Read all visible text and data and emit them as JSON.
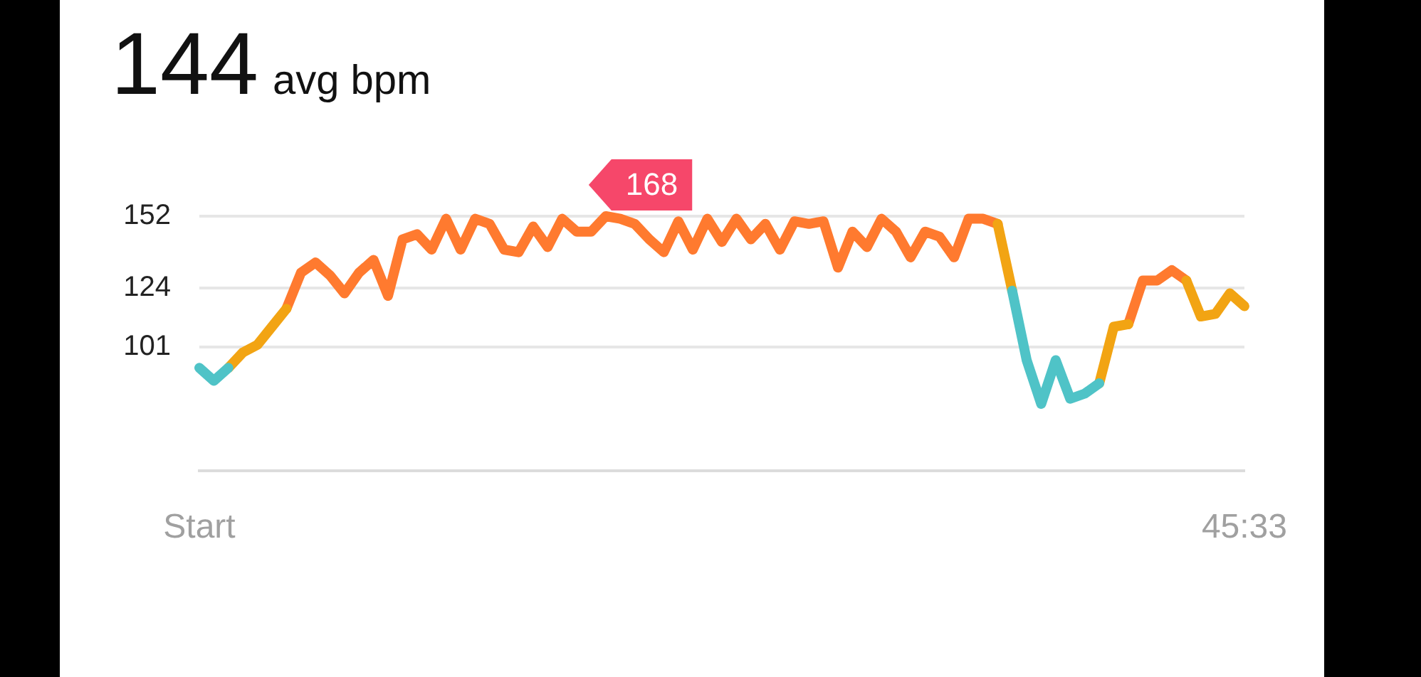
{
  "chart_data": {
    "type": "line",
    "title": "144",
    "subtitle": "avg bpm",
    "categories": [
      "Start",
      null,
      null,
      null,
      null,
      null,
      null,
      null,
      null,
      null,
      null,
      null,
      null,
      null,
      null,
      null,
      null,
      null,
      null,
      null,
      null,
      null,
      null,
      null,
      null,
      null,
      null,
      null,
      null,
      null,
      null,
      null,
      null,
      null,
      null,
      null,
      null,
      null,
      null,
      null,
      null,
      null,
      null,
      null,
      null,
      null,
      null,
      null,
      null,
      null,
      null,
      null,
      null,
      null,
      null,
      null,
      null,
      null,
      null,
      null,
      null,
      null,
      null,
      null,
      null,
      null,
      null,
      null,
      null,
      null,
      null,
      null,
      "45:33"
    ],
    "series": [
      {
        "color": "#4fc3c7",
        "values": [
          93,
          88,
          93,
          null,
          null,
          null,
          null,
          null,
          null,
          null,
          null,
          null,
          null,
          null,
          null,
          null,
          null,
          null,
          null,
          null,
          null,
          null,
          null,
          null,
          null,
          null,
          null,
          null,
          null,
          null,
          null,
          null,
          null,
          null,
          null,
          null,
          null,
          null,
          null,
          null,
          null,
          null,
          null,
          null,
          null,
          null,
          null,
          null,
          null,
          null,
          null,
          null,
          null,
          null,
          null,
          null,
          123,
          96,
          79,
          96,
          81,
          83,
          87,
          null,
          null,
          null,
          null,
          null,
          null,
          null,
          null,
          null,
          null
        ]
      },
      {
        "color": "#f2a413",
        "values": [
          null,
          null,
          93,
          99,
          102,
          109,
          116,
          null,
          null,
          null,
          null,
          null,
          null,
          null,
          null,
          null,
          null,
          null,
          null,
          null,
          null,
          null,
          null,
          null,
          null,
          null,
          null,
          null,
          null,
          null,
          null,
          null,
          null,
          null,
          null,
          null,
          null,
          null,
          null,
          null,
          null,
          null,
          null,
          null,
          null,
          null,
          null,
          null,
          null,
          null,
          null,
          null,
          null,
          null,
          null,
          149,
          123,
          null,
          null,
          null,
          null,
          null,
          87,
          109,
          110,
          null,
          null,
          null,
          127,
          113,
          114,
          122,
          117
        ]
      },
      {
        "color": "#ff7a2f",
        "values": [
          null,
          null,
          null,
          null,
          null,
          null,
          116,
          130,
          134,
          129,
          122,
          130,
          135,
          121,
          143,
          145,
          139,
          151,
          139,
          151,
          149,
          139,
          138,
          148,
          140,
          151,
          146,
          146,
          152,
          151,
          149,
          143,
          138,
          150,
          139,
          151,
          142,
          151,
          143,
          149,
          139,
          150,
          149,
          150,
          132,
          146,
          140,
          151,
          146,
          136,
          146,
          144,
          136,
          151,
          151,
          149,
          null,
          null,
          null,
          null,
          null,
          null,
          null,
          null,
          110,
          127,
          127,
          131,
          127,
          null,
          null,
          null,
          null
        ]
      }
    ],
    "ylim": [
      53,
      152
    ],
    "yticks": [
      101,
      124,
      152
    ],
    "grid": "y",
    "marker": "none",
    "line_style": "solid",
    "legend": false,
    "annotations": [
      "168"
    ]
  }
}
